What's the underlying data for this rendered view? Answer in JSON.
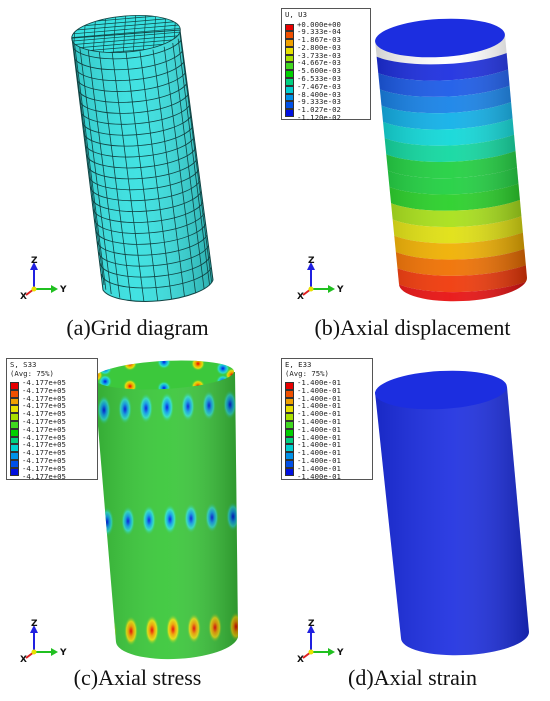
{
  "panels": [
    {
      "id": "a",
      "caption": "(a)Grid diagram",
      "kind": "mesh",
      "color": "#38e0e0"
    },
    {
      "id": "b",
      "caption": "(b)Axial displacement",
      "kind": "bands",
      "legend": {
        "title_line1": "U, U3",
        "title_line2": "",
        "values": [
          "+0.000e+00",
          "-9.333e-04",
          "-1.867e-03",
          "-2.800e-03",
          "-3.733e-03",
          "-4.667e-03",
          "-5.600e-03",
          "-6.533e-03",
          "-7.467e-03",
          "-8.400e-03",
          "-9.333e-03",
          "-1.027e-02",
          "-1.120e-02"
        ]
      },
      "band_colors": [
        "#1c2ee0",
        "#1a5ae8",
        "#1682e8",
        "#10b0e8",
        "#10d8d8",
        "#10d8a0",
        "#20d040",
        "#20d040",
        "#28d028",
        "#a8e018",
        "#e0e010",
        "#f0b000",
        "#f07000",
        "#f03808",
        "#e81010"
      ]
    },
    {
      "id": "c",
      "caption": "(c)Axial stress",
      "kind": "stress",
      "legend": {
        "title_line1": "S, S33",
        "title_line2": "(Avg: 75%)",
        "values": [
          "-4.177e+05",
          "-4.177e+05",
          "-4.177e+05",
          "-4.177e+05",
          "-4.177e+05",
          "-4.177e+05",
          "-4.177e+05",
          "-4.177e+05",
          "-4.177e+05",
          "-4.177e+05",
          "-4.177e+05",
          "-4.177e+05",
          "-4.177e+05"
        ]
      },
      "base_color": "#3cc83c"
    },
    {
      "id": "d",
      "caption": "(d)Axial strain",
      "kind": "solid",
      "legend": {
        "title_line1": "E, E33",
        "title_line2": "(Avg: 75%)",
        "values": [
          "-1.400e-01",
          "-1.400e-01",
          "-1.400e-01",
          "-1.400e-01",
          "-1.400e-01",
          "-1.400e-01",
          "-1.400e-01",
          "-1.400e-01",
          "-1.400e-01",
          "-1.400e-01",
          "-1.400e-01",
          "-1.400e-01",
          "-1.400e-01"
        ]
      },
      "color": "#1c2ee0"
    }
  ],
  "legend_swatches": [
    "#e80000",
    "#f05000",
    "#f0a000",
    "#e8e000",
    "#a8e000",
    "#40d820",
    "#00d000",
    "#00d080",
    "#00d0d0",
    "#0090e8",
    "#0050e8",
    "#0010e0"
  ],
  "triad": {
    "z": "Z",
    "x": "X",
    "y": "Y",
    "z_color": "#2020e0",
    "y_color": "#20c020",
    "x_color": "#e02020"
  }
}
